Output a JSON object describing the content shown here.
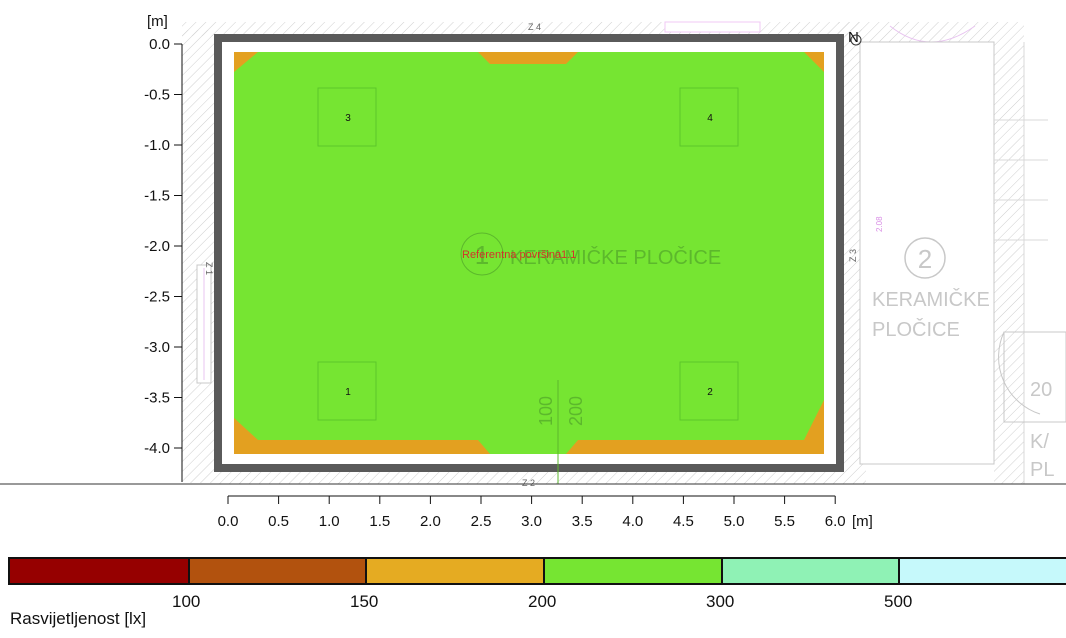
{
  "colors": {
    "iso_green": "#76e532",
    "iso_orange": "#e3a020",
    "wall_dark": "#5a5a5a",
    "plan_gray": "#c8c8c8",
    "label_red": "#d2332b",
    "compass_magenta": "#e08ae6"
  },
  "axes": {
    "y_unit": "[m]",
    "x_unit": "[m]",
    "y_ticks": [
      "0.0",
      "-0.5",
      "-1.0",
      "-1.5",
      "-2.0",
      "-2.5",
      "-3.0",
      "-3.5",
      "-4.0"
    ],
    "x_ticks": [
      "0.0",
      "0.5",
      "1.0",
      "1.5",
      "2.0",
      "2.5",
      "3.0",
      "3.5",
      "4.0",
      "4.5",
      "5.0",
      "5.5",
      "6.0"
    ]
  },
  "luminaires": [
    "1",
    "2",
    "3",
    "4"
  ],
  "reference_surface": "Referentna površina1.1",
  "room1": {
    "number": "1",
    "label": "KERAMIČKE PLOČICE"
  },
  "room2": {
    "number": "2",
    "label_line1": "KERAMIČKE",
    "label_line2": "PLOČICE",
    "area": "2.08"
  },
  "wall_labels": {
    "top": "Z 4",
    "left": "Z 1",
    "right": "Z 3",
    "bottom": "Z 2"
  },
  "dimensions": [
    "100",
    "200"
  ],
  "cut_text_right": [
    "20",
    "K/",
    "PL"
  ],
  "compass": "N",
  "legend": {
    "title": "Rasvijetljenost [lx]",
    "colors": [
      "#960000",
      "#b2520e",
      "#e5ab22",
      "#76e532",
      "#8ff2b5",
      "#c6f9fb"
    ],
    "thresholds": [
      "100",
      "150",
      "200",
      "300",
      "500"
    ]
  }
}
